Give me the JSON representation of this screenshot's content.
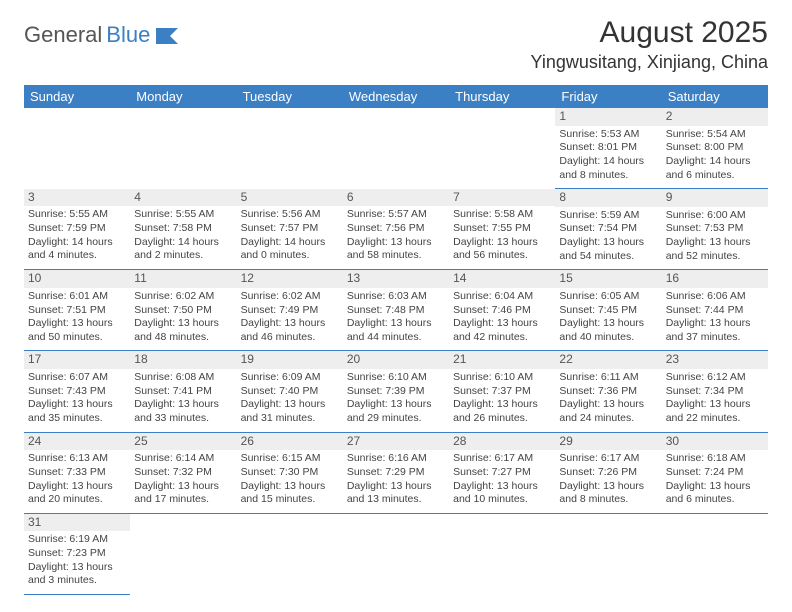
{
  "brand": {
    "part1": "General",
    "part2": "Blue"
  },
  "title": "August 2025",
  "location": "Yingwusitang, Xinjiang, China",
  "colors": {
    "header_bg": "#3b7fc4",
    "daynum_bg": "#eeeeee",
    "border": "#3b7fc4",
    "text": "#333333"
  },
  "weekdays": [
    "Sunday",
    "Monday",
    "Tuesday",
    "Wednesday",
    "Thursday",
    "Friday",
    "Saturday"
  ],
  "weeks": [
    [
      null,
      null,
      null,
      null,
      null,
      {
        "n": "1",
        "sr": "Sunrise: 5:53 AM",
        "ss": "Sunset: 8:01 PM",
        "dl1": "Daylight: 14 hours",
        "dl2": "and 8 minutes."
      },
      {
        "n": "2",
        "sr": "Sunrise: 5:54 AM",
        "ss": "Sunset: 8:00 PM",
        "dl1": "Daylight: 14 hours",
        "dl2": "and 6 minutes."
      }
    ],
    [
      {
        "n": "3",
        "sr": "Sunrise: 5:55 AM",
        "ss": "Sunset: 7:59 PM",
        "dl1": "Daylight: 14 hours",
        "dl2": "and 4 minutes."
      },
      {
        "n": "4",
        "sr": "Sunrise: 5:55 AM",
        "ss": "Sunset: 7:58 PM",
        "dl1": "Daylight: 14 hours",
        "dl2": "and 2 minutes."
      },
      {
        "n": "5",
        "sr": "Sunrise: 5:56 AM",
        "ss": "Sunset: 7:57 PM",
        "dl1": "Daylight: 14 hours",
        "dl2": "and 0 minutes."
      },
      {
        "n": "6",
        "sr": "Sunrise: 5:57 AM",
        "ss": "Sunset: 7:56 PM",
        "dl1": "Daylight: 13 hours",
        "dl2": "and 58 minutes."
      },
      {
        "n": "7",
        "sr": "Sunrise: 5:58 AM",
        "ss": "Sunset: 7:55 PM",
        "dl1": "Daylight: 13 hours",
        "dl2": "and 56 minutes."
      },
      {
        "n": "8",
        "sr": "Sunrise: 5:59 AM",
        "ss": "Sunset: 7:54 PM",
        "dl1": "Daylight: 13 hours",
        "dl2": "and 54 minutes."
      },
      {
        "n": "9",
        "sr": "Sunrise: 6:00 AM",
        "ss": "Sunset: 7:53 PM",
        "dl1": "Daylight: 13 hours",
        "dl2": "and 52 minutes."
      }
    ],
    [
      {
        "n": "10",
        "sr": "Sunrise: 6:01 AM",
        "ss": "Sunset: 7:51 PM",
        "dl1": "Daylight: 13 hours",
        "dl2": "and 50 minutes."
      },
      {
        "n": "11",
        "sr": "Sunrise: 6:02 AM",
        "ss": "Sunset: 7:50 PM",
        "dl1": "Daylight: 13 hours",
        "dl2": "and 48 minutes."
      },
      {
        "n": "12",
        "sr": "Sunrise: 6:02 AM",
        "ss": "Sunset: 7:49 PM",
        "dl1": "Daylight: 13 hours",
        "dl2": "and 46 minutes."
      },
      {
        "n": "13",
        "sr": "Sunrise: 6:03 AM",
        "ss": "Sunset: 7:48 PM",
        "dl1": "Daylight: 13 hours",
        "dl2": "and 44 minutes."
      },
      {
        "n": "14",
        "sr": "Sunrise: 6:04 AM",
        "ss": "Sunset: 7:46 PM",
        "dl1": "Daylight: 13 hours",
        "dl2": "and 42 minutes."
      },
      {
        "n": "15",
        "sr": "Sunrise: 6:05 AM",
        "ss": "Sunset: 7:45 PM",
        "dl1": "Daylight: 13 hours",
        "dl2": "and 40 minutes."
      },
      {
        "n": "16",
        "sr": "Sunrise: 6:06 AM",
        "ss": "Sunset: 7:44 PM",
        "dl1": "Daylight: 13 hours",
        "dl2": "and 37 minutes."
      }
    ],
    [
      {
        "n": "17",
        "sr": "Sunrise: 6:07 AM",
        "ss": "Sunset: 7:43 PM",
        "dl1": "Daylight: 13 hours",
        "dl2": "and 35 minutes."
      },
      {
        "n": "18",
        "sr": "Sunrise: 6:08 AM",
        "ss": "Sunset: 7:41 PM",
        "dl1": "Daylight: 13 hours",
        "dl2": "and 33 minutes."
      },
      {
        "n": "19",
        "sr": "Sunrise: 6:09 AM",
        "ss": "Sunset: 7:40 PM",
        "dl1": "Daylight: 13 hours",
        "dl2": "and 31 minutes."
      },
      {
        "n": "20",
        "sr": "Sunrise: 6:10 AM",
        "ss": "Sunset: 7:39 PM",
        "dl1": "Daylight: 13 hours",
        "dl2": "and 29 minutes."
      },
      {
        "n": "21",
        "sr": "Sunrise: 6:10 AM",
        "ss": "Sunset: 7:37 PM",
        "dl1": "Daylight: 13 hours",
        "dl2": "and 26 minutes."
      },
      {
        "n": "22",
        "sr": "Sunrise: 6:11 AM",
        "ss": "Sunset: 7:36 PM",
        "dl1": "Daylight: 13 hours",
        "dl2": "and 24 minutes."
      },
      {
        "n": "23",
        "sr": "Sunrise: 6:12 AM",
        "ss": "Sunset: 7:34 PM",
        "dl1": "Daylight: 13 hours",
        "dl2": "and 22 minutes."
      }
    ],
    [
      {
        "n": "24",
        "sr": "Sunrise: 6:13 AM",
        "ss": "Sunset: 7:33 PM",
        "dl1": "Daylight: 13 hours",
        "dl2": "and 20 minutes."
      },
      {
        "n": "25",
        "sr": "Sunrise: 6:14 AM",
        "ss": "Sunset: 7:32 PM",
        "dl1": "Daylight: 13 hours",
        "dl2": "and 17 minutes."
      },
      {
        "n": "26",
        "sr": "Sunrise: 6:15 AM",
        "ss": "Sunset: 7:30 PM",
        "dl1": "Daylight: 13 hours",
        "dl2": "and 15 minutes."
      },
      {
        "n": "27",
        "sr": "Sunrise: 6:16 AM",
        "ss": "Sunset: 7:29 PM",
        "dl1": "Daylight: 13 hours",
        "dl2": "and 13 minutes."
      },
      {
        "n": "28",
        "sr": "Sunrise: 6:17 AM",
        "ss": "Sunset: 7:27 PM",
        "dl1": "Daylight: 13 hours",
        "dl2": "and 10 minutes."
      },
      {
        "n": "29",
        "sr": "Sunrise: 6:17 AM",
        "ss": "Sunset: 7:26 PM",
        "dl1": "Daylight: 13 hours",
        "dl2": "and 8 minutes."
      },
      {
        "n": "30",
        "sr": "Sunrise: 6:18 AM",
        "ss": "Sunset: 7:24 PM",
        "dl1": "Daylight: 13 hours",
        "dl2": "and 6 minutes."
      }
    ],
    [
      {
        "n": "31",
        "sr": "Sunrise: 6:19 AM",
        "ss": "Sunset: 7:23 PM",
        "dl1": "Daylight: 13 hours",
        "dl2": "and 3 minutes."
      },
      null,
      null,
      null,
      null,
      null,
      null
    ]
  ]
}
